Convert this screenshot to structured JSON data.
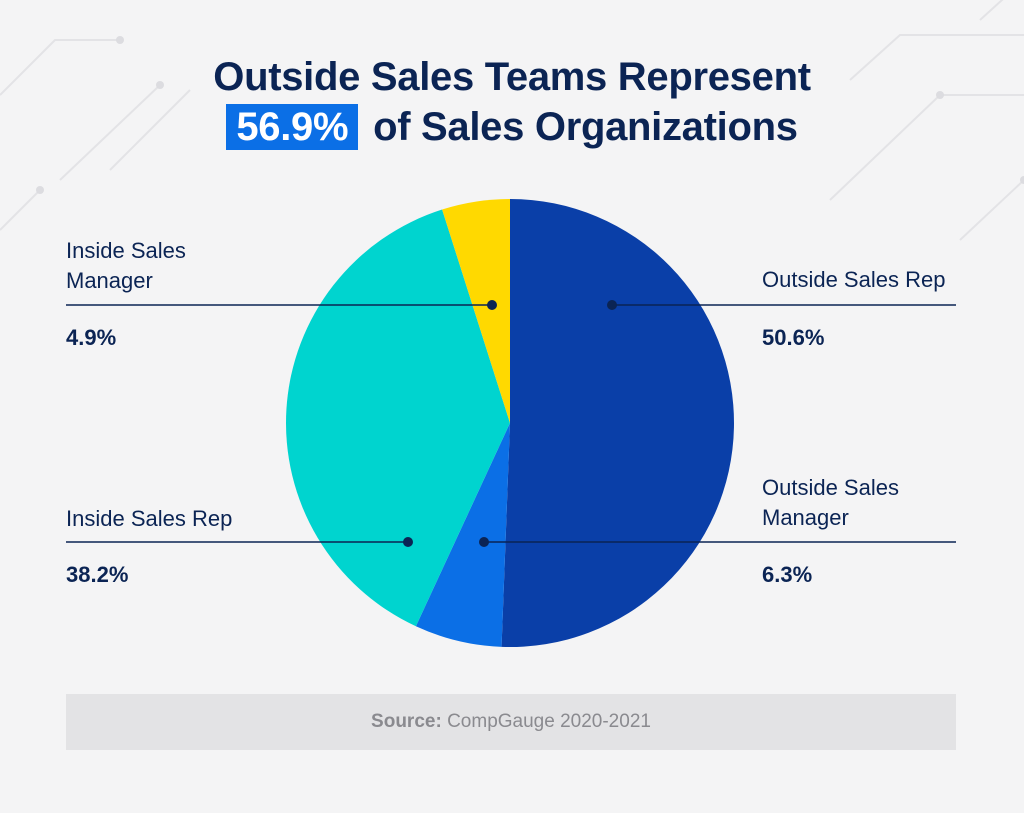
{
  "title": {
    "line1": "Outside Sales Teams Represent",
    "highlight": "56.9%",
    "line2_rest": "of Sales Organizations"
  },
  "colors": {
    "outside_rep": "#0a3fa8",
    "outside_mgr": "#0b6fe6",
    "inside_rep": "#00d4cf",
    "inside_mgr": "#ffd900",
    "title": "#0b2454",
    "highlight_bg": "#0b6fe6"
  },
  "chart_data": {
    "type": "pie",
    "title": "Outside Sales Teams Represent 56.9% of Sales Organizations",
    "start": "12 o'clock, clockwise",
    "slices": [
      {
        "label": "Outside Sales Rep",
        "value": 50.6,
        "display": "50.6%"
      },
      {
        "label": "Outside Sales Manager",
        "value": 6.3,
        "display": "6.3%"
      },
      {
        "label": "Inside Sales Rep",
        "value": 38.2,
        "display": "38.2%"
      },
      {
        "label": "Inside Sales Manager",
        "value": 4.9,
        "display": "4.9%"
      }
    ]
  },
  "labels": {
    "inside_mgr_line1": "Inside Sales",
    "inside_mgr_line2": "Manager",
    "outside_rep": "Outside Sales Rep",
    "outside_mgr_line1": "Outside Sales",
    "outside_mgr_line2": "Manager",
    "inside_rep": "Inside Sales Rep"
  },
  "source": {
    "prefix": "Source:",
    "text": "CompGauge 2020-2021"
  }
}
